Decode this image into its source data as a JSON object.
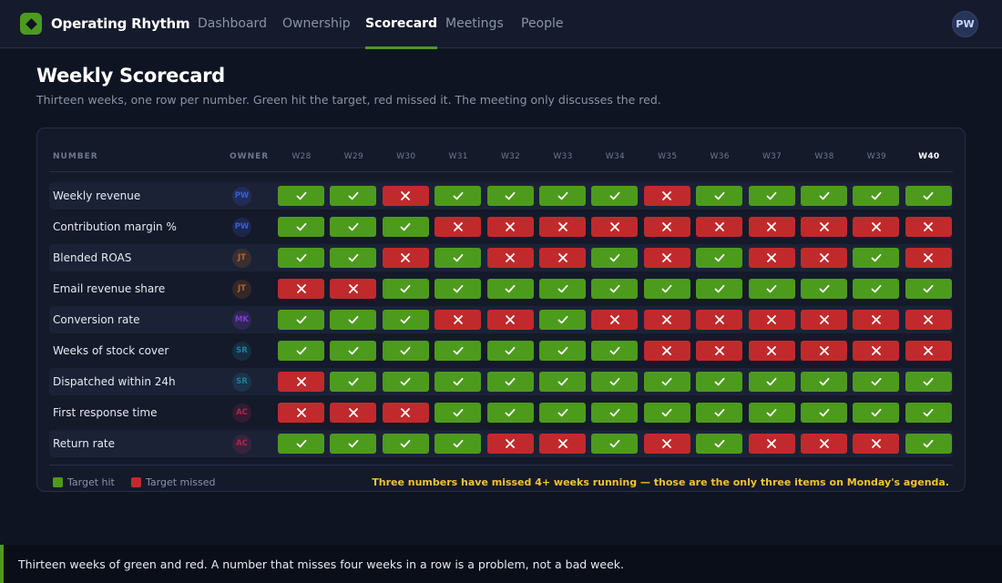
{
  "app": {
    "name": "Operating Rhythm"
  },
  "nav": {
    "tabs": [
      {
        "label": "Dashboard",
        "active": false
      },
      {
        "label": "Ownership",
        "active": false
      },
      {
        "label": "Scorecard",
        "active": true
      },
      {
        "label": "Meetings",
        "active": false
      },
      {
        "label": "People",
        "active": false
      }
    ],
    "user_initials": "PW"
  },
  "page": {
    "title": "Weekly Scorecard",
    "subtitle": "Thirteen weeks, one row per number. Green hit the target, red missed it. The meeting only discusses the red."
  },
  "scorecard": {
    "headers": {
      "number": "NUMBER",
      "owner": "OWNER"
    },
    "weeks": [
      "W28",
      "W29",
      "W30",
      "W31",
      "W32",
      "W33",
      "W34",
      "W35",
      "W36",
      "W37",
      "W38",
      "W39",
      "W40"
    ],
    "current_week": "W40",
    "rows": [
      {
        "name": "Weekly revenue",
        "owner": "PW",
        "owner_color": "#3b5bd6",
        "results": "HHMHHHHMHHHHH"
      },
      {
        "name": "Contribution margin %",
        "owner": "PW",
        "owner_color": "#3b5bd6",
        "results": "HHHMMMMMMMMMM"
      },
      {
        "name": "Blended ROAS",
        "owner": "JT",
        "owner_color": "#b5652a",
        "results": "HHMHMMHMHMMHM"
      },
      {
        "name": "Email revenue share",
        "owner": "JT",
        "owner_color": "#b5652a",
        "results": "MMHHHHHHHHHHH"
      },
      {
        "name": "Conversion rate",
        "owner": "MK",
        "owner_color": "#7b3fd0",
        "results": "HHHMMHMMMMMMM"
      },
      {
        "name": "Weeks of stock cover",
        "owner": "SR",
        "owner_color": "#1f7d9b",
        "results": "HHHHHHHMMMMMM"
      },
      {
        "name": "Dispatched within 24h",
        "owner": "SR",
        "owner_color": "#1f7d9b",
        "results": "MHHHHHHHHHHHH"
      },
      {
        "name": "First response time",
        "owner": "AC",
        "owner_color": "#a8284f",
        "results": "MMMHHHHHHHHHH"
      },
      {
        "name": "Return rate",
        "owner": "AC",
        "owner_color": "#a8284f",
        "results": "HHHHMMHMHMMMH"
      }
    ],
    "legend": {
      "hit": "Target hit",
      "miss": "Target missed"
    },
    "agenda_note": "Three numbers have missed 4+ weeks running — those are the only three items on Monday's agenda."
  },
  "colors": {
    "hit": "#4d9b1d",
    "miss": "#c12a2c",
    "accent": "#4d9b1d",
    "note": "#f2c232"
  },
  "banner": {
    "text": "Thirteen weeks of green and red. A number that misses four weeks in a row is a problem, not a bad week."
  }
}
